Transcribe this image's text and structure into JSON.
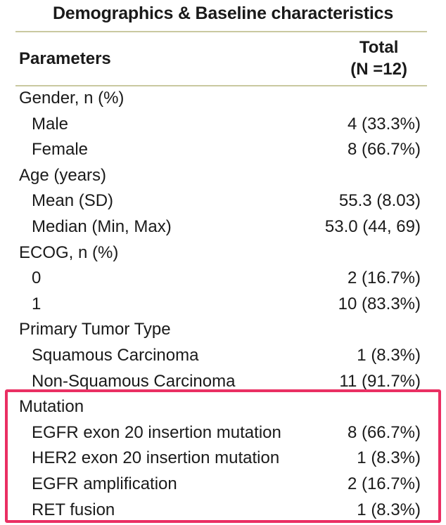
{
  "title": "Demographics & Baseline characteristics",
  "header": {
    "parameters": "Parameters",
    "total_line1": "Total",
    "total_line2": "(N =12)"
  },
  "rows": [
    {
      "label": "Gender, n (%)",
      "value": "",
      "indent": false
    },
    {
      "label": "Male",
      "value": "4 (33.3%)",
      "indent": true
    },
    {
      "label": "Female",
      "value": "8 (66.7%)",
      "indent": true
    },
    {
      "label": "Age (years)",
      "value": "",
      "indent": false
    },
    {
      "label": "Mean (SD)",
      "value": "55.3 (8.03)",
      "indent": true
    },
    {
      "label": "Median (Min, Max)",
      "value": "53.0 (44, 69)",
      "indent": true
    },
    {
      "label": "ECOG, n (%)",
      "value": "",
      "indent": false
    },
    {
      "label": "0",
      "value": "2 (16.7%)",
      "indent": true
    },
    {
      "label": "1",
      "value": "10 (83.3%)",
      "indent": true
    },
    {
      "label": "Primary Tumor Type",
      "value": "",
      "indent": false
    },
    {
      "label": "Squamous Carcinoma",
      "value": "1 (8.3%)",
      "indent": true
    },
    {
      "label": "Non-Squamous Carcinoma",
      "value": "11 (91.7%)",
      "indent": true
    },
    {
      "label": "Mutation",
      "value": "",
      "indent": false
    },
    {
      "label": "EGFR exon 20 insertion mutation",
      "value": "8 (66.7%)",
      "indent": true
    },
    {
      "label": "HER2 exon 20 insertion mutation",
      "value": "1 (8.3%)",
      "indent": true
    },
    {
      "label": "EGFR amplification",
      "value": "2 (16.7%)",
      "indent": true
    },
    {
      "label": "RET fusion",
      "value": "1 (8.3%)",
      "indent": true
    }
  ],
  "colors": {
    "highlight_border": "#ea2f63",
    "rule": "#c9c8a0",
    "text": "#1a1a1a"
  }
}
